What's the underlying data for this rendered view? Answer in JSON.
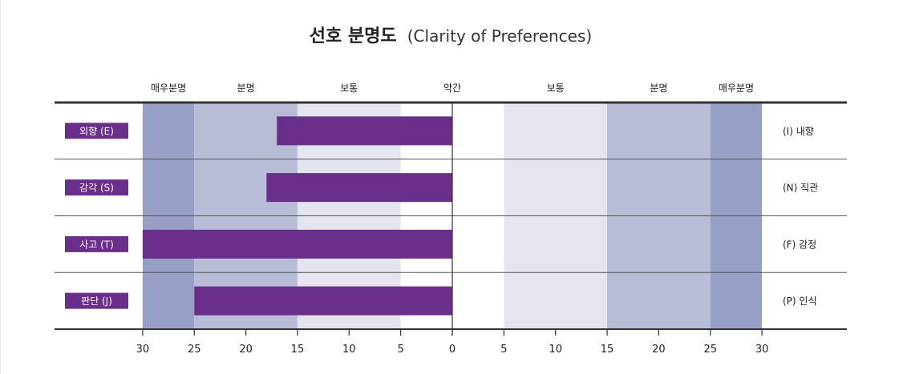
{
  "chart_data": {
    "type": "bar",
    "title": "선호 분명도",
    "subtitle": "(Clarity of Preferences)",
    "band_labels": [
      {
        "label": "매우분명",
        "at": -27.5
      },
      {
        "label": "분명",
        "at": -20
      },
      {
        "label": "보통",
        "at": -10
      },
      {
        "label": "약간",
        "at": 0
      },
      {
        "label": "보통",
        "at": 10
      },
      {
        "label": "분명",
        "at": 20
      },
      {
        "label": "매우분명",
        "at": 27.5
      }
    ],
    "bands": [
      {
        "from": -30,
        "to": -25,
        "color": "#979fc6"
      },
      {
        "from": -25,
        "to": -15,
        "color": "#b9bcd6"
      },
      {
        "from": -15,
        "to": -5,
        "color": "#e4e5ef"
      },
      {
        "from": 5,
        "to": 15,
        "color": "#e4e5ef"
      },
      {
        "from": 15,
        "to": 25,
        "color": "#b9bcd6"
      },
      {
        "from": 25,
        "to": 30,
        "color": "#979fc6"
      }
    ],
    "categories_left": [
      "외향 (E)",
      "감각 (S)",
      "사고 (T)",
      "판단 (J)"
    ],
    "categories_right": [
      "(I) 내향",
      "(N) 직관",
      "(F) 감정",
      "(P) 인식"
    ],
    "values": [
      17,
      18,
      30,
      25
    ],
    "direction": "left",
    "bar_color": "#6a2f8a",
    "label_color": "#6a2f8a",
    "xlim": [
      -30,
      30
    ],
    "ticks": [
      30,
      25,
      20,
      15,
      10,
      5,
      0,
      5,
      10,
      15,
      20,
      25,
      30
    ]
  }
}
